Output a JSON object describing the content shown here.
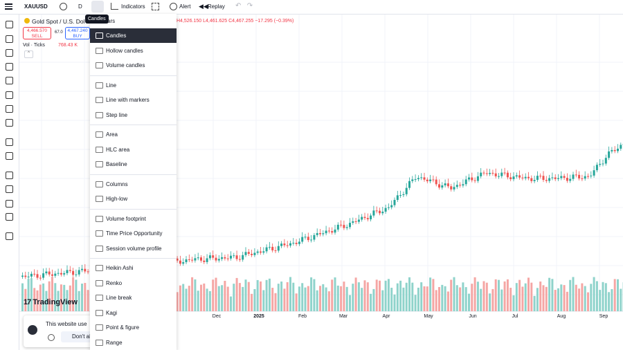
{
  "toolbar": {
    "symbol": "XAUUSD",
    "interval": "D",
    "indicators": "Indicators",
    "alert": "Alert",
    "replay": "Replay",
    "tooltip": "Candles",
    "hidden_item": "ars"
  },
  "legend": {
    "title": "Gold Spot / U.S. Dol",
    "ohlc": "H4,526.150 L4,461.625 C4,467.255 −17.295 (−0.39%)",
    "sell_price": "4,466.570",
    "sell": "SELL",
    "spread": "67.0",
    "buy_price": "4,467.240",
    "buy": "BUY",
    "volume_title": "Vol · Ticks",
    "volume_value": "768.43 K"
  },
  "menu": {
    "groups": [
      [
        "Candles",
        "Hollow candles",
        "Volume candles"
      ],
      [
        "Line",
        "Line with markers",
        "Step line"
      ],
      [
        "Area",
        "HLC area",
        "Baseline"
      ],
      [
        "Columns",
        "High-low"
      ],
      [
        "Volume footprint",
        "Time Price Opportunity",
        "Session volume profile"
      ],
      [
        "Heikin Ashi",
        "Renko",
        "Line break",
        "Kagi",
        "Point & figure",
        "Range"
      ]
    ]
  },
  "time_axis": [
    "Dec",
    "2025",
    "Feb",
    "Mar",
    "Apr",
    "May",
    "Jun",
    "Jul",
    "Aug",
    "Sep"
  ],
  "logo": "TradingView",
  "cookie": {
    "text": "This website use",
    "button": "Don't al"
  }
}
